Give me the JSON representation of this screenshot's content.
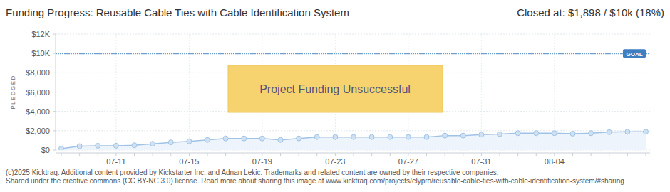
{
  "chart_data": {
    "type": "area",
    "title": "Funding Progress: Reusable Cable Ties with Cable Identification System",
    "subtitle": "Closed at: $1,898 / $10k (18%)",
    "y_label": "PLEDGED",
    "annotation": "Project Funding Unsuccessful",
    "goal": {
      "value": 10000,
      "label": "GOAL"
    },
    "footer": [
      "(c)2025 Kicktraq. Additional content provided by Kickstarter Inc. and Adnan Lekic. Trademarks and related content are owned by their respective companies.",
      "Shared under the creative commons (CC BY-NC 3.0) license. Read more about sharing this image at www.kicktraq.com/projects/elypro/reusable-cable-ties-with-cable-identification-system/#sharing"
    ],
    "categories": [
      null,
      null,
      null,
      "07-11",
      null,
      null,
      null,
      "07-15",
      null,
      null,
      null,
      "07-19",
      null,
      null,
      null,
      "07-23",
      null,
      null,
      null,
      "07-27",
      null,
      null,
      null,
      "07-31",
      null,
      null,
      null,
      "08-04",
      null,
      null,
      null,
      null,
      null
    ],
    "values": [
      150,
      400,
      450,
      450,
      500,
      650,
      800,
      900,
      1050,
      1200,
      1200,
      1200,
      1050,
      1200,
      1350,
      1350,
      1350,
      1350,
      1350,
      1350,
      1350,
      1500,
      1500,
      1600,
      1650,
      1750,
      1750,
      1750,
      1700,
      1750,
      1850,
      1898,
      1898
    ],
    "color": "#9fc3e6",
    "marker": "circle",
    "grid": true,
    "ylim": [
      0,
      12000
    ],
    "yticks": [
      {
        "value": 0,
        "label": "$0"
      },
      {
        "value": 2000,
        "label": "$2,000"
      },
      {
        "value": 4000,
        "label": "$4,000"
      },
      {
        "value": 6000,
        "label": "$6,000"
      },
      {
        "value": 8000,
        "label": "$8,000"
      },
      {
        "value": 10000,
        "label": "$10K"
      },
      {
        "value": 12000,
        "label": "$12K"
      }
    ]
  }
}
